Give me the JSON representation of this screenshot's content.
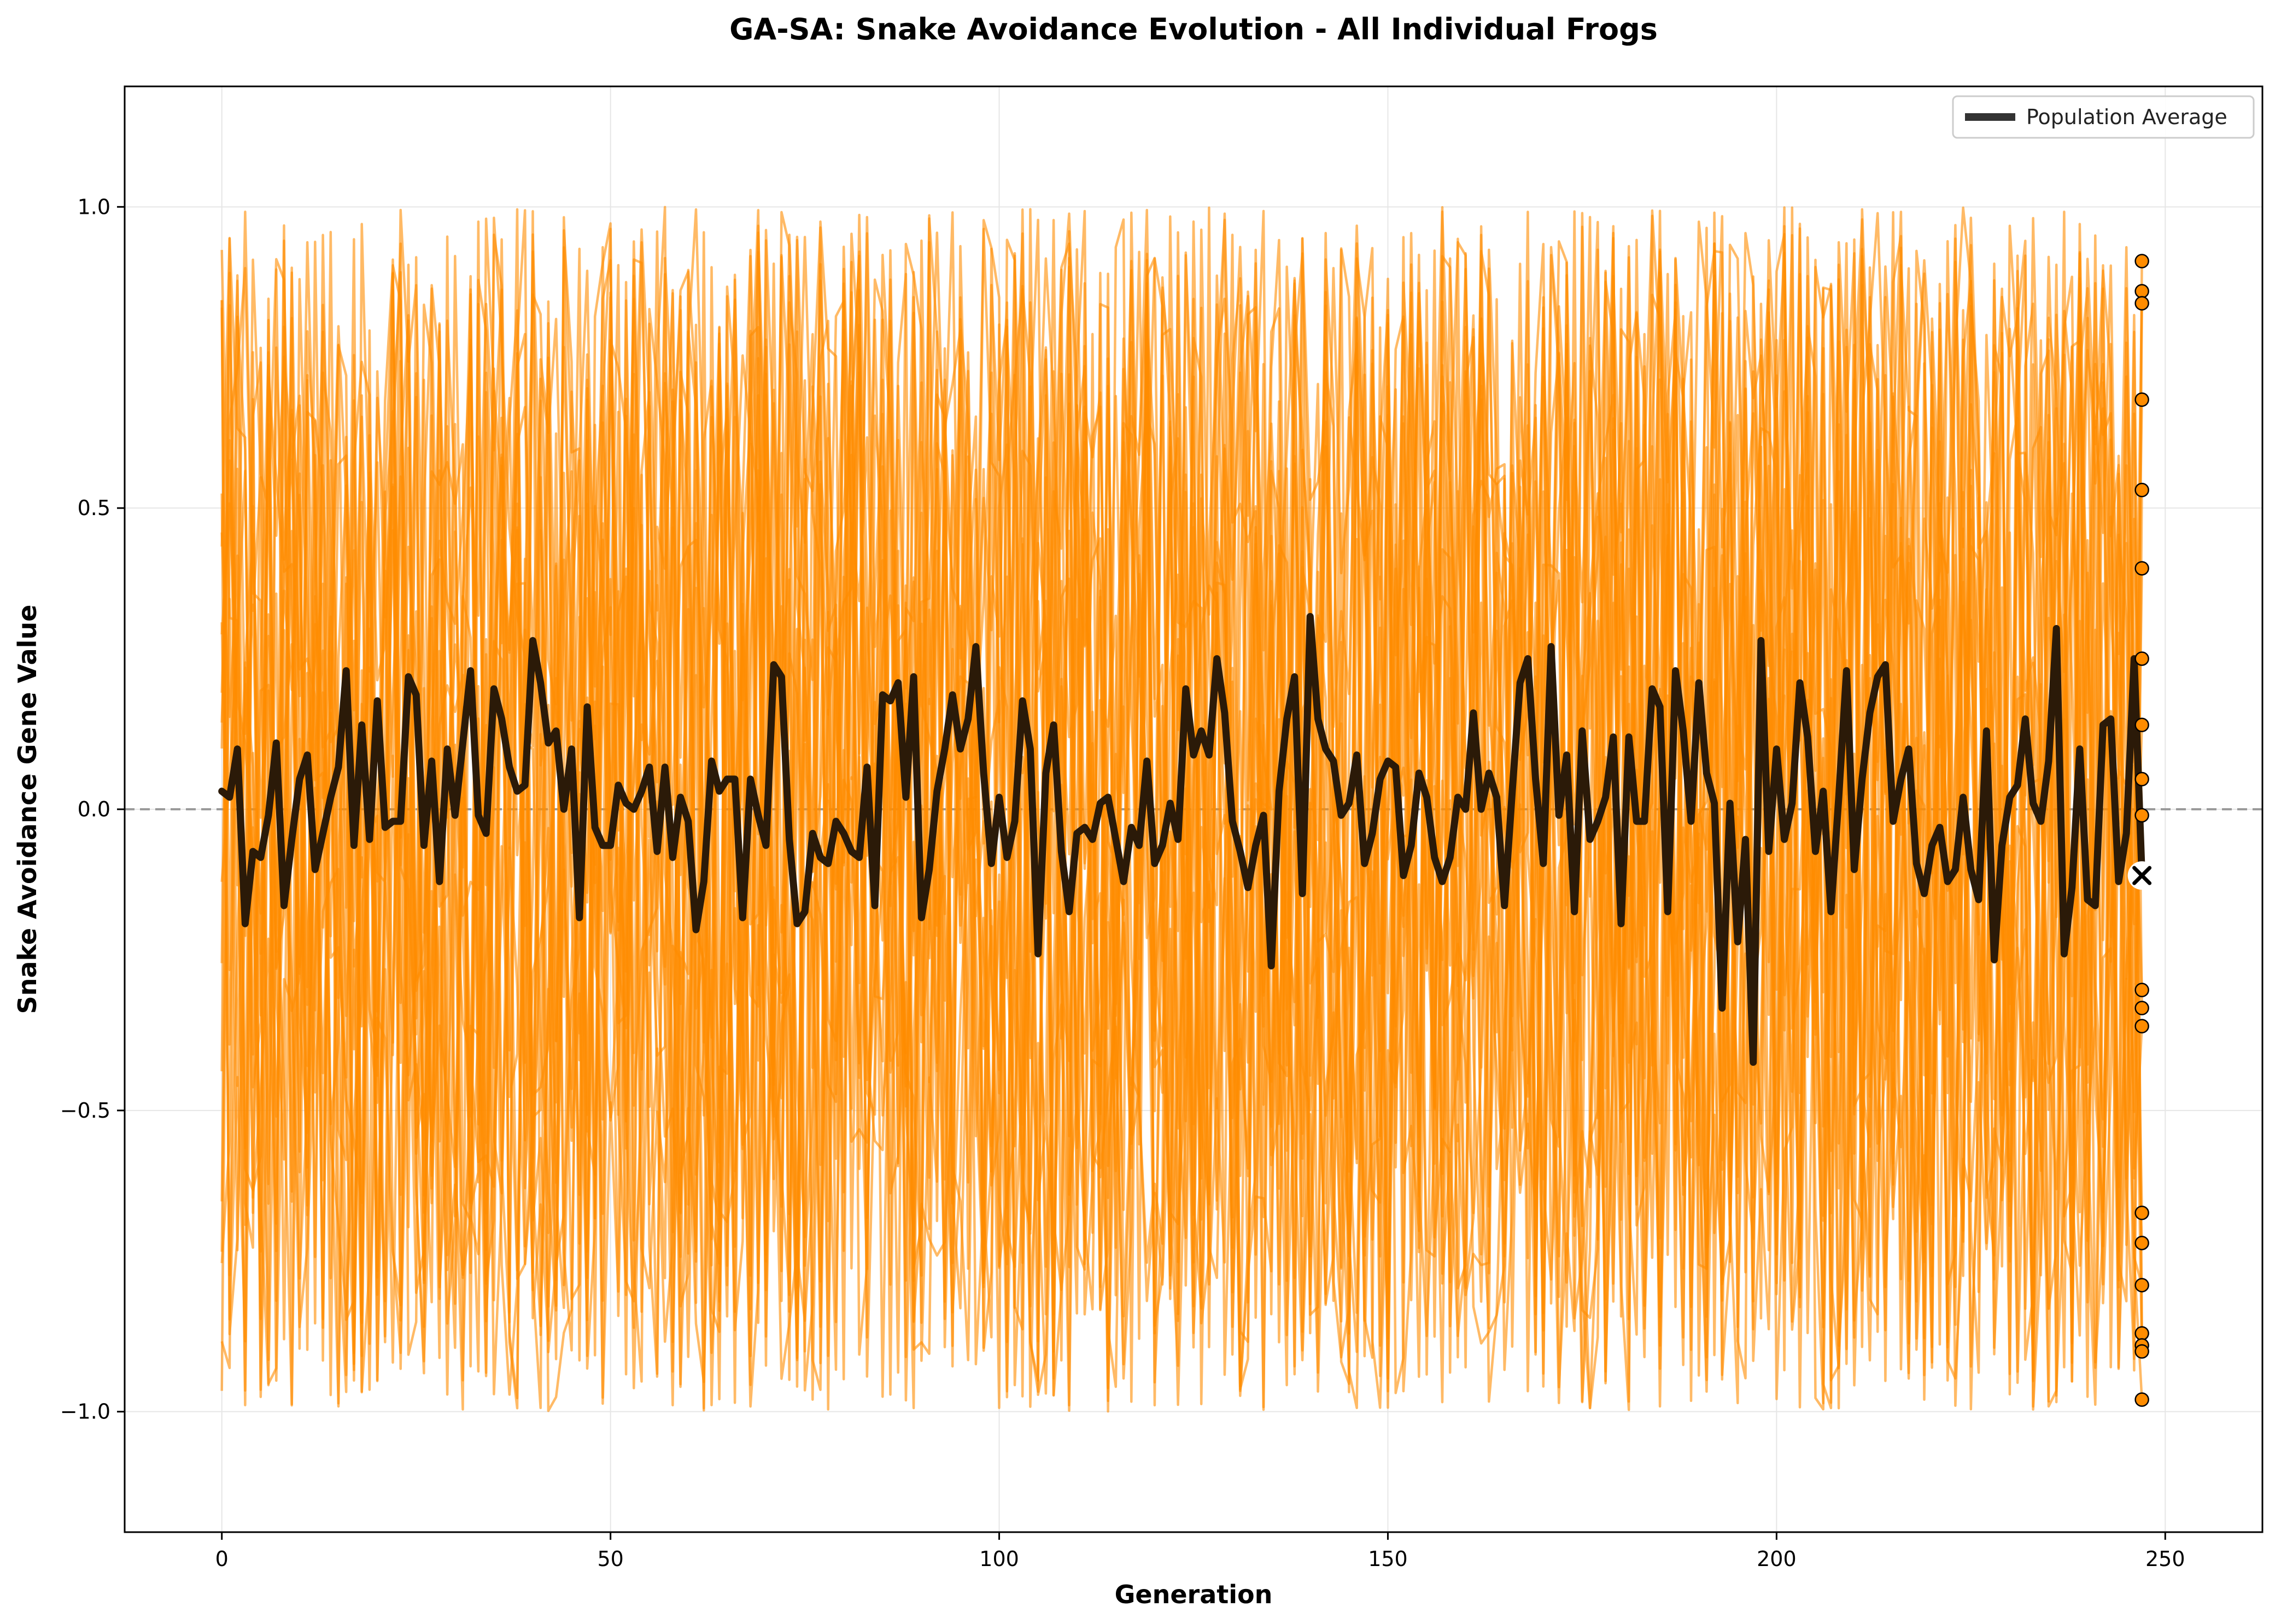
{
  "chart_data": {
    "type": "line",
    "title": "GA-SA: Snake Avoidance Evolution - All Individual Frogs",
    "xlabel": "Generation",
    "ylabel": "Snake Avoidance Gene Value",
    "xlim": [
      -12.5,
      262.5
    ],
    "ylim": [
      -1.2,
      1.2
    ],
    "xticks": [
      0,
      50,
      100,
      150,
      200,
      250
    ],
    "yticks": [
      -1.0,
      -0.5,
      0.0,
      0.5,
      1.0
    ],
    "xtick_labels": [
      "0",
      "50",
      "100",
      "150",
      "200",
      "250"
    ],
    "ytick_labels": [
      "−1.0",
      "−0.5",
      "0.0",
      "0.5",
      "1.0"
    ],
    "grid": true,
    "reference_line_y": 0.0,
    "legend_position": "top-right",
    "individual_line_color": "#FF8C00",
    "individual_count": 20,
    "individual_value_range": [
      -1.0,
      1.0
    ],
    "series": [
      {
        "name": "Population Average",
        "color": "#2b1a08",
        "values": [
          0.03,
          0.02,
          0.1,
          -0.19,
          -0.07,
          -0.08,
          -0.01,
          0.11,
          -0.16,
          -0.05,
          0.05,
          0.09,
          -0.1,
          -0.04,
          0.02,
          0.07,
          0.23,
          -0.06,
          0.14,
          -0.05,
          0.18,
          -0.03,
          -0.02,
          -0.02,
          0.22,
          0.19,
          -0.06,
          0.08,
          -0.12,
          0.1,
          -0.01,
          0.11,
          0.23,
          -0.01,
          -0.04,
          0.2,
          0.15,
          0.07,
          0.03,
          0.04,
          0.28,
          0.21,
          0.11,
          0.13,
          0.0,
          0.1,
          -0.18,
          0.17,
          -0.03,
          -0.06,
          -0.06,
          0.04,
          0.01,
          0.0,
          0.03,
          0.07,
          -0.07,
          0.07,
          -0.08,
          0.02,
          -0.02,
          -0.2,
          -0.12,
          0.08,
          0.03,
          0.05,
          0.05,
          -0.18,
          0.05,
          -0.01,
          -0.06,
          0.24,
          0.22,
          -0.05,
          -0.19,
          -0.17,
          -0.04,
          -0.08,
          -0.09,
          -0.02,
          -0.04,
          -0.07,
          -0.08,
          0.07,
          -0.16,
          0.19,
          0.18,
          0.21,
          0.02,
          0.22,
          -0.18,
          -0.1,
          0.03,
          0.1,
          0.19,
          0.1,
          0.15,
          0.27,
          0.06,
          -0.09,
          0.02,
          -0.08,
          -0.02,
          0.18,
          0.1,
          -0.24,
          0.06,
          0.14,
          -0.07,
          -0.17,
          -0.04,
          -0.03,
          -0.05,
          0.01,
          0.02,
          -0.05,
          -0.12,
          -0.03,
          -0.06,
          0.08,
          -0.09,
          -0.06,
          0.01,
          -0.05,
          0.2,
          0.09,
          0.13,
          0.09,
          0.25,
          0.16,
          -0.02,
          -0.07,
          -0.13,
          -0.06,
          -0.01,
          -0.26,
          0.03,
          0.15,
          0.22,
          -0.14,
          0.32,
          0.15,
          0.1,
          0.08,
          -0.01,
          0.01,
          0.09,
          -0.09,
          -0.04,
          0.05,
          0.08,
          0.07,
          -0.11,
          -0.06,
          0.06,
          0.02,
          -0.08,
          -0.12,
          -0.08,
          0.02,
          0.0,
          0.16,
          0.0,
          0.06,
          0.02,
          -0.16,
          0.03,
          0.21,
          0.25,
          0.05,
          -0.09,
          0.27,
          -0.01,
          0.09,
          -0.17,
          0.13,
          -0.05,
          -0.02,
          0.02,
          0.12,
          -0.19,
          0.12,
          -0.02,
          -0.02,
          0.2,
          0.17,
          -0.17,
          0.23,
          0.13,
          -0.02,
          0.21,
          0.06,
          0.01,
          -0.33,
          0.01,
          -0.22,
          -0.05,
          -0.42,
          0.28,
          -0.07,
          0.1,
          -0.05,
          0.01,
          0.21,
          0.12,
          -0.07,
          0.03,
          -0.17,
          0.02,
          0.23,
          -0.1,
          0.05,
          0.16,
          0.22,
          0.24,
          -0.02,
          0.05,
          0.1,
          -0.09,
          -0.14,
          -0.06,
          -0.03,
          -0.12,
          -0.1,
          0.02,
          -0.1,
          -0.15,
          0.13,
          -0.25,
          -0.06,
          0.02,
          0.04,
          0.15,
          0.01,
          -0.02,
          0.08,
          0.3,
          -0.24,
          -0.13,
          0.1,
          -0.15,
          -0.16,
          0.14,
          0.15,
          -0.12,
          -0.04,
          0.25,
          -0.11
        ]
      }
    ],
    "final_individual_values": [
      0.91,
      0.86,
      0.84,
      0.68,
      0.53,
      0.4,
      0.25,
      0.14,
      0.05,
      -0.01,
      -0.3,
      -0.33,
      -0.36,
      -0.67,
      -0.72,
      -0.79,
      -0.87,
      -0.89,
      -0.9,
      -0.98
    ],
    "final_average_value": -0.11,
    "legend_entries": [
      "Population Average"
    ]
  }
}
